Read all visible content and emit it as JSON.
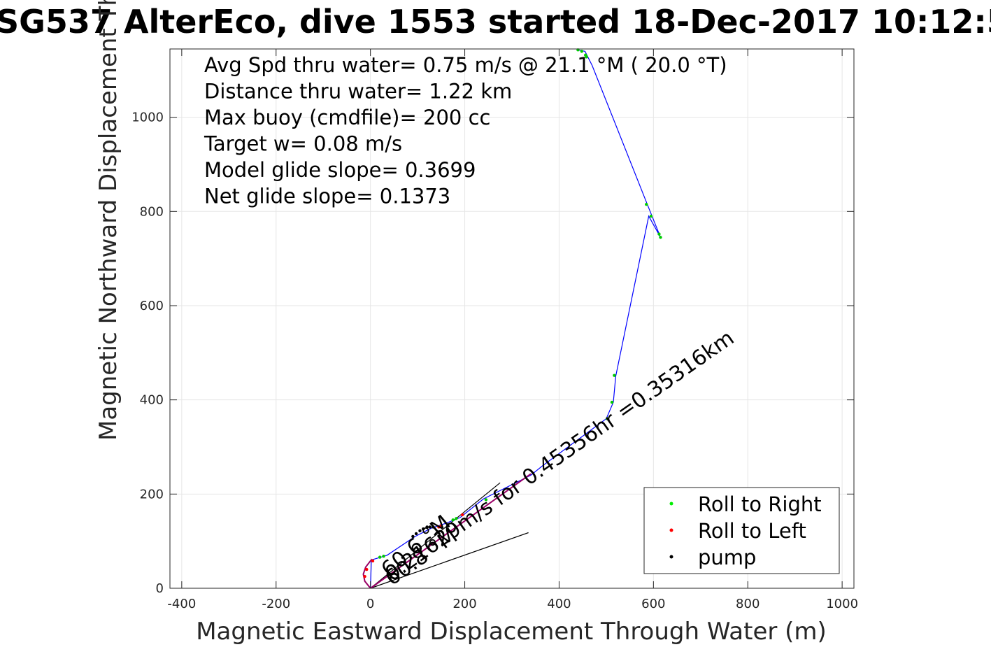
{
  "chart_data": {
    "type": "scatter",
    "title": "SG537 AlterEco, dive 1553 started 18-Dec-2017 10:12:5",
    "xlabel": "Magnetic Eastward Displacement Through Water (m)",
    "ylabel": "Magnetic Northward Displacement Through Water (",
    "xlim": [
      -425,
      1025
    ],
    "ylim": [
      0,
      1145
    ],
    "xticks": [
      "-400",
      "-200",
      "0",
      "200",
      "400",
      "600",
      "800",
      "1000"
    ],
    "xtick_values": [
      -400,
      -200,
      0,
      200,
      400,
      600,
      800,
      1000
    ],
    "yticks": [
      "0",
      "200",
      "400",
      "600",
      "800",
      "1000"
    ],
    "ytick_values": [
      0,
      200,
      400,
      600,
      800,
      1000
    ],
    "grid": true,
    "annotations": [
      "Avg Spd thru water=  0.75 m/s @  21.1 °M ( 20.0 °T)",
      "Distance thru water=  1.22 km",
      "Max buoy (cmdfile)= 200 cc",
      "Target w= 0.08 m/s",
      "Model glide slope= 0.3699",
      "Net glide slope= 0.1373"
    ],
    "rotated_labels": [
      {
        "text": "0.21629m/s for 0.45356hr =0.35316km",
        "angle_deg": 35
      },
      {
        "text": "60.6 °M",
        "angle_deg": 40
      },
      {
        "text": "60.8 °M",
        "angle_deg": 35
      }
    ],
    "legend": {
      "position": "bottom-right",
      "entries": [
        {
          "label": "Roll to Right",
          "color": "#00ee00"
        },
        {
          "label": "Roll to Left",
          "color": "#ff0000"
        },
        {
          "label": "pump",
          "color": "#000000"
        }
      ]
    },
    "series": [
      {
        "color": "#0000ff",
        "x": [
          0,
          2,
          35,
          95,
          130,
          160,
          190,
          240,
          340,
          365,
          500,
          515,
          520,
          590,
          615,
          585,
          470,
          455,
          440
        ],
        "y": [
          0,
          60,
          70,
          110,
          128,
          138,
          150,
          190,
          240,
          260,
          360,
          395,
          450,
          790,
          745,
          820,
          1110,
          1140,
          1143
        ]
      },
      {
        "color": "#000000",
        "x": [
          0,
          275
        ],
        "y": [
          0,
          224
        ]
      },
      {
        "color": "#000000",
        "x": [
          0,
          335
        ],
        "y": [
          0,
          118
        ]
      },
      {
        "color": "#990066",
        "x": [
          0,
          340
        ],
        "y": [
          0,
          243
        ]
      },
      {
        "color": "#990066",
        "x": [
          0,
          -12,
          -15,
          -10,
          0,
          4
        ],
        "y": [
          0,
          15,
          30,
          45,
          58,
          62
        ]
      }
    ],
    "markers": [
      {
        "color": "#00cc00",
        "x": [
          20,
          28,
          175,
          182,
          245,
          502,
          512,
          517,
          585,
          595,
          612,
          615,
          440,
          448,
          456,
          458
        ],
        "y": [
          66,
          68,
          145,
          148,
          188,
          360,
          395,
          452,
          815,
          790,
          752,
          745,
          1143,
          1140,
          1132,
          1128
        ]
      },
      {
        "color": "#ff0000",
        "x": [
          5,
          -8,
          -12,
          145,
          150,
          195
        ],
        "y": [
          58,
          40,
          25,
          130,
          133,
          156
        ]
      },
      {
        "color": "#000000",
        "x": [
          90,
          97,
          105,
          112,
          120,
          126,
          133
        ],
        "y": [
          110,
          116,
          122,
          126,
          130,
          130,
          130
        ]
      }
    ]
  }
}
